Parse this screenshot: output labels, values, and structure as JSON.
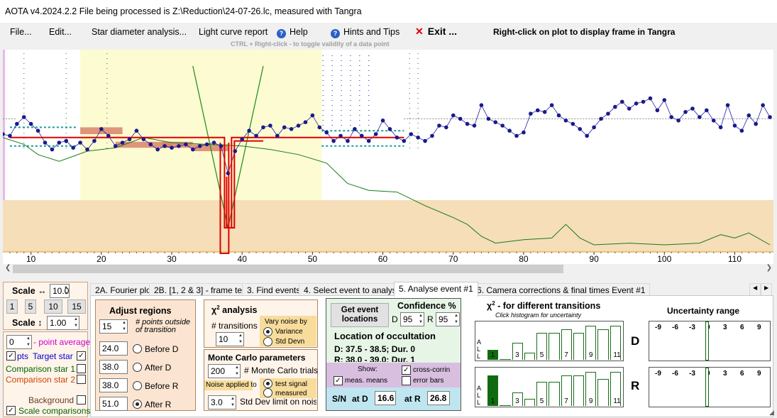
{
  "title": "AOTA v4.2024.2.2    File being processed is Z:\\Reduction\\24-07-26.lc, measured with Tangra",
  "menu": {
    "file": "File...",
    "edit": "Edit...",
    "star_diameter": "Star diameter analysis...",
    "light_curve": "Light curve report",
    "help": "Help",
    "hints": "Hints and Tips",
    "exit": "Exit ...",
    "right_click_hint": "Right-click on plot to display frame in Tangra",
    "ctrl_hint": "CTRL + Right-click  -  to toggle validity of a data point"
  },
  "chart_data": {
    "type": "scatter",
    "x_ticks": [
      "10",
      "20",
      "30",
      "40",
      "50",
      "60",
      "70",
      "80",
      "90",
      "100",
      "110"
    ],
    "x_range": [
      6.0,
      115.5
    ],
    "y_range": [
      0,
      10
    ],
    "regions": {
      "before_d": [
        24.0,
        38.0
      ],
      "after_d": [
        38.0,
        43.0
      ],
      "before_r": [
        38.0,
        43.0
      ],
      "after_r": [
        51.0,
        63.0
      ]
    },
    "event_d": [
      37.5,
      38.5
    ],
    "event_r": [
      38.0,
      39.0
    ],
    "points": [
      [
        6,
        6.5
      ],
      [
        7,
        6.4
      ],
      [
        8,
        7.1
      ],
      [
        9,
        7.5
      ],
      [
        10,
        7.1
      ],
      [
        11,
        6.7
      ],
      [
        12,
        6.0
      ],
      [
        13,
        5.6
      ],
      [
        14,
        6.0
      ],
      [
        15,
        6.1
      ],
      [
        16,
        5.7
      ],
      [
        17,
        6.0
      ],
      [
        18,
        5.6
      ],
      [
        19,
        6.1
      ],
      [
        20,
        6.8
      ],
      [
        21,
        6.4
      ],
      [
        22,
        5.8
      ],
      [
        23,
        6.0
      ],
      [
        24,
        6.2
      ],
      [
        25,
        6.7
      ],
      [
        26,
        6.2
      ],
      [
        27,
        5.9
      ],
      [
        28,
        5.6
      ],
      [
        29,
        5.8
      ],
      [
        30,
        5.7
      ],
      [
        31,
        5.8
      ],
      [
        32,
        5.9
      ],
      [
        33,
        5.6
      ],
      [
        34,
        5.8
      ],
      [
        35,
        5.9
      ],
      [
        36,
        6.0
      ],
      [
        37,
        5.8
      ],
      [
        38,
        4.2
      ],
      [
        39,
        5.5
      ],
      [
        40,
        6.2
      ],
      [
        41,
        6.7
      ],
      [
        42,
        6.4
      ],
      [
        43,
        6.9
      ],
      [
        44,
        7.0
      ],
      [
        45,
        6.4
      ],
      [
        46,
        6.9
      ],
      [
        47,
        6.8
      ],
      [
        48,
        7.0
      ],
      [
        49,
        7.2
      ],
      [
        50,
        7.6
      ],
      [
        51,
        6.9
      ],
      [
        52,
        6.6
      ],
      [
        53,
        6.1
      ],
      [
        54,
        6.4
      ],
      [
        55,
        6.1
      ],
      [
        56,
        6.8
      ],
      [
        57,
        6.4
      ],
      [
        58,
        6.1
      ],
      [
        59,
        6.5
      ],
      [
        60,
        7.3
      ],
      [
        61,
        6.8
      ],
      [
        62,
        6.3
      ],
      [
        63,
        6.1
      ],
      [
        64,
        6.5
      ],
      [
        65,
        6.3
      ],
      [
        66,
        6.1
      ],
      [
        67,
        6.4
      ],
      [
        68,
        7.0
      ],
      [
        69,
        6.9
      ],
      [
        70,
        7.6
      ],
      [
        71,
        7.4
      ],
      [
        72,
        7.1
      ],
      [
        73,
        7.0
      ],
      [
        74,
        8.2
      ],
      [
        75,
        7.4
      ],
      [
        76,
        7.2
      ],
      [
        77,
        7.0
      ],
      [
        78,
        6.7
      ],
      [
        79,
        6.4
      ],
      [
        80,
        6.6
      ],
      [
        81,
        7.7
      ],
      [
        82,
        7.9
      ],
      [
        83,
        7.8
      ],
      [
        84,
        8.2
      ],
      [
        85,
        7.6
      ],
      [
        86,
        7.3
      ],
      [
        87,
        7.1
      ],
      [
        88,
        6.8
      ],
      [
        89,
        6.4
      ],
      [
        90,
        6.9
      ],
      [
        91,
        7.4
      ],
      [
        92,
        7.7
      ],
      [
        93,
        8.1
      ],
      [
        94,
        8.4
      ],
      [
        95,
        8.0
      ],
      [
        96,
        8.3
      ],
      [
        97,
        8.4
      ],
      [
        98,
        8.6
      ],
      [
        99,
        7.9
      ],
      [
        100,
        8.5
      ],
      [
        101,
        7.5
      ],
      [
        102,
        7.3
      ],
      [
        103,
        7.8
      ],
      [
        104,
        8.0
      ],
      [
        105,
        7.5
      ],
      [
        106,
        7.9
      ],
      [
        107,
        7.3
      ],
      [
        108,
        6.9
      ],
      [
        109,
        8.2
      ],
      [
        110,
        7.0
      ],
      [
        111,
        6.7
      ],
      [
        112,
        7.6
      ],
      [
        113,
        7.1
      ],
      [
        114,
        8.2
      ],
      [
        115,
        7.5
      ]
    ],
    "fit_line": [
      [
        7,
        6.3
      ],
      [
        37.5,
        6.3
      ],
      [
        37.5,
        1.0
      ],
      [
        38.5,
        1.0
      ],
      [
        38.5,
        6.3
      ],
      [
        63,
        6.3
      ]
    ],
    "comparison_curve": [
      [
        6,
        6.3
      ],
      [
        9,
        5.9
      ],
      [
        11,
        5.3
      ],
      [
        14,
        4.9
      ],
      [
        18,
        5.5
      ],
      [
        22,
        5.7
      ],
      [
        26,
        6.3
      ],
      [
        30,
        6.0
      ],
      [
        35,
        5.9
      ],
      [
        40,
        5.8
      ],
      [
        44,
        5.6
      ],
      [
        48,
        5.3
      ],
      [
        52,
        4.8
      ],
      [
        55,
        3.6
      ],
      [
        58,
        3.2
      ],
      [
        62,
        3.1
      ],
      [
        66,
        2.3
      ],
      [
        70,
        1.6
      ],
      [
        72,
        1.2
      ],
      [
        74,
        0.5
      ],
      [
        76,
        0.1
      ],
      [
        80,
        0.3
      ],
      [
        84,
        0.4
      ],
      [
        86,
        1.2
      ],
      [
        88,
        0.4
      ],
      [
        90,
        0.0
      ],
      [
        95,
        0.1
      ],
      [
        100,
        0.0
      ],
      [
        105,
        0.1
      ],
      [
        108,
        0.6
      ],
      [
        110,
        0.4
      ],
      [
        112,
        0.7
      ],
      [
        115,
        0.0
      ]
    ],
    "vee_curve": [
      [
        33,
        10.5
      ],
      [
        38,
        1.0
      ],
      [
        43,
        10.5
      ]
    ]
  },
  "left": {
    "scale_h_label": "Scale ↔",
    "scale_h_value": "10.0",
    "scale_buttons": [
      "1",
      "5",
      "10",
      "15"
    ],
    "scale_v_label": "Scale ↕",
    "scale_v_value": "1.00",
    "point_avg_value": "0",
    "point_avg_label": "- point average",
    "pts_label": "pts",
    "target_label": "Target star",
    "comp1_label": "Comparison star 1",
    "comp2_label": "Comparison star 2",
    "background_label": "Background",
    "scale_comp_label": "Scale comparisons"
  },
  "tabs": [
    "2A. Fourier plot",
    "2B. [1, 2 & 3] - frame test",
    "3. Find events",
    "4. Select event to analyse",
    "5. Analyse event #1",
    "6. Camera corrections & final times Event #1"
  ],
  "adjust": {
    "title": "Adjust regions",
    "points_value": "15",
    "points_label": "# points outside of transition",
    "before_d_value": "24.0",
    "before_d_label": "Before D",
    "after_d_value": "38.0",
    "after_d_label": "After D",
    "before_r_value": "38.0",
    "before_r_label": "Before R",
    "after_r_value": "51.0",
    "after_r_label": "After R"
  },
  "chi": {
    "title_chi": "χ",
    "title_sup": "2",
    "title_rest": " analysis",
    "transitions_label": "# transitions",
    "transitions_value": "10",
    "vary_label": "Vary noise by",
    "variance": "Variance",
    "stddev": "Std Devn"
  },
  "monte": {
    "title": "Monte Carlo parameters",
    "trials_value": "200",
    "trials_label": "# Monte Carlo trials",
    "noise_label": "Noise applied to",
    "test_signal": "test signal",
    "measured": "measured",
    "limit_value": "3.0",
    "limit_label": "Std Dev limit on noise"
  },
  "location": {
    "get_button": "Get event locations",
    "confidence_title": "Confidence %",
    "d_label": "D",
    "d_value": "95",
    "r_label": "R",
    "r_value": "95",
    "title": "Location of occultation",
    "d_line": "D: 37.5 - 38.5; Dur. 0",
    "r_line": "R: 38.0 - 39.0; Dur. 1",
    "show": "Show:",
    "cross_corr": "cross-corrin",
    "meas_means": "meas. means",
    "error_bars": "error bars",
    "sn": "S/N",
    "at_d": "at D",
    "at_d_value": "16.6",
    "at_r": "at R",
    "at_r_value": "26.8"
  },
  "transitions": {
    "title_chi": "χ",
    "title_sup": "2",
    "title_rest": " - for different transitions",
    "subtitle": "Click histogram for uncertainty",
    "hist_x": [
      "1",
      "3",
      "5",
      "7",
      "9",
      "11"
    ],
    "hist_side": [
      "A",
      "L",
      "L"
    ],
    "d_bars": [
      0.3,
      0.0,
      0.5,
      0.2,
      0.8,
      0.8,
      0.9,
      0.8,
      1.0,
      0.9,
      1.0
    ],
    "r_bars": [
      0.9,
      0.0,
      0.4,
      0.2,
      0.7,
      0.7,
      0.9,
      0.9,
      1.0,
      0.8,
      1.0
    ],
    "d_label": "D",
    "r_label": "R"
  },
  "uncertainty": {
    "title": "Uncertainty range",
    "ticks": [
      "-9",
      "-6",
      "-3",
      "0",
      "3",
      "6",
      "9"
    ]
  }
}
